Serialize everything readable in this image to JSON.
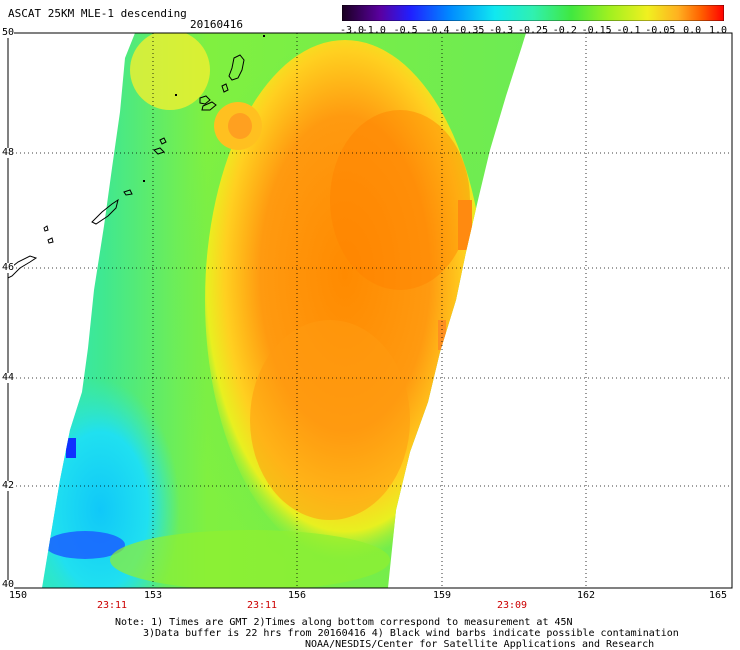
{
  "header": {
    "title": "ASCAT 25KM MLE-1 descending",
    "date": "20160416"
  },
  "colorbar": {
    "labels": [
      "-3.0",
      "-1.0",
      "-0.5",
      "-0.4",
      "-0.35",
      "-0.3",
      "-0.25",
      "-0.2",
      "-0.15",
      "-0.1",
      "-0.05",
      "0.0",
      "1.0"
    ],
    "colors": [
      "#1a0020",
      "#5a00a0",
      "#1020ff",
      "#0088ff",
      "#00c8f0",
      "#20f0e0",
      "#30f0a0",
      "#40e840",
      "#a0f020",
      "#f0f020",
      "#ffb020",
      "#ff6000",
      "#ff0000"
    ]
  },
  "axes": {
    "lat_labels": [
      "50",
      "48",
      "46",
      "44",
      "42",
      "40"
    ],
    "lon_labels": [
      "150",
      "153",
      "156",
      "159",
      "162",
      "165"
    ],
    "time_labels": [
      "23:11",
      "23:11",
      "23:09"
    ]
  },
  "footer": {
    "line1": "Note: 1) Times are GMT 2)Times along bottom correspond to measurement at 45N",
    "line2": "3)Data buffer is 22 hrs from 20160416 4) Black wind barbs indicate possible contamination",
    "line3": "NOAA/NESDIS/Center for Satellite Applications and Research"
  }
}
